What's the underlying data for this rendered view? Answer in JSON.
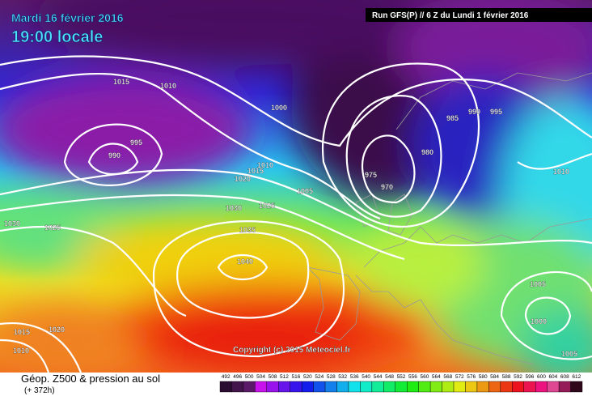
{
  "header": {
    "date": "Mardi 16 février 2016",
    "time": "19:00 locale",
    "run": "Run GFS(P) // 6 Z du Lundi 1 février 2016"
  },
  "isobar_labels": [
    1015,
    1010,
    1000,
    995,
    990,
    985,
    990,
    995,
    980,
    975,
    970,
    1010,
    1015,
    1020,
    1005,
    1025,
    1030,
    1035,
    1040,
    1030,
    1025,
    1010,
    1005,
    1000,
    1005,
    1015,
    1020,
    1010
  ],
  "footer": {
    "copyright": "Copyright (c) 2015 Meteociel.fr",
    "caption": "Géop. Z500 & pression au sol",
    "lead": "(+ 372h)"
  },
  "scale": [
    492,
    496,
    500,
    504,
    508,
    512,
    516,
    520,
    524,
    528,
    532,
    536,
    540,
    544,
    548,
    552,
    556,
    560,
    564,
    568,
    572,
    576,
    580,
    584,
    588,
    592,
    596,
    600,
    604,
    608,
    612
  ]
}
